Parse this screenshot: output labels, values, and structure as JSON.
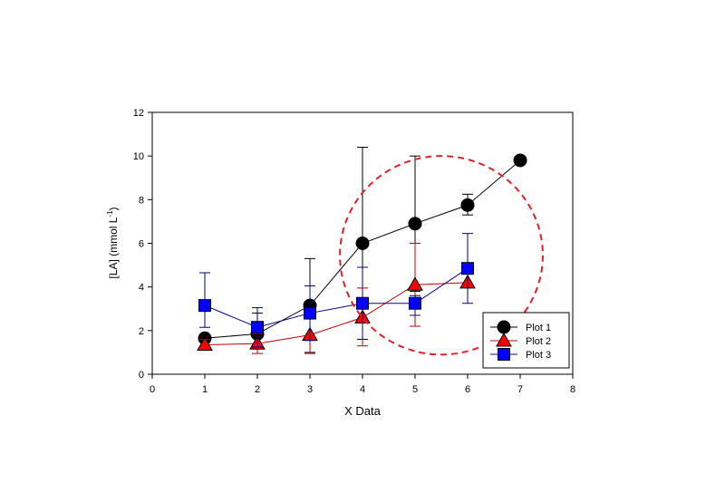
{
  "chart_data": {
    "type": "line",
    "title": "",
    "xlabel": "X Data",
    "ylabel": "[LA] (mmol L",
    "ylabel_sup": "-1",
    "ylabel_end": ")",
    "xlim": [
      0,
      8
    ],
    "ylim": [
      0,
      12
    ],
    "xticks": [
      0,
      1,
      2,
      3,
      4,
      5,
      6,
      7,
      8
    ],
    "yticks": [
      0,
      2,
      4,
      6,
      8,
      10,
      12
    ],
    "grid": false,
    "legend_position": "bottom-right",
    "series": [
      {
        "name": "Plot 1",
        "marker": "circle",
        "color": "#000000",
        "line_color": "#000000",
        "x": [
          1,
          2,
          3,
          4,
          5,
          6,
          7
        ],
        "y": [
          1.65,
          1.85,
          3.15,
          6.0,
          6.9,
          7.75,
          9.8
        ],
        "err_low": [
          0.05,
          0.1,
          2.15,
          4.4,
          3.1,
          0.45,
          0
        ],
        "err_high": [
          0.05,
          0.95,
          2.15,
          4.4,
          3.1,
          0.5,
          0
        ]
      },
      {
        "name": "Plot 2",
        "marker": "triangle",
        "color": "#ff0000",
        "line_color": "#c00000",
        "x": [
          1,
          2,
          3,
          4,
          5,
          6
        ],
        "y": [
          1.35,
          1.4,
          1.8,
          2.6,
          4.1,
          4.2
        ],
        "err_low": [
          0.25,
          0.45,
          0.85,
          1.3,
          1.9,
          0
        ],
        "err_high": [
          0.25,
          0.45,
          0.85,
          1.35,
          1.9,
          0
        ]
      },
      {
        "name": "Plot 3",
        "marker": "square",
        "color": "#0000ff",
        "line_color": "#00008b",
        "x": [
          1,
          2,
          3,
          4,
          5,
          6
        ],
        "y": [
          3.15,
          2.15,
          2.8,
          3.25,
          3.25,
          4.85
        ],
        "err_low": [
          1.0,
          0.9,
          1.25,
          1.65,
          0.55,
          1.6
        ],
        "err_high": [
          1.5,
          0.9,
          1.25,
          1.65,
          0.35,
          1.6
        ]
      }
    ],
    "annotation": {
      "shape": "dashed-ellipse",
      "color": "#e0202a",
      "cx": 5.5,
      "cy": 5.45,
      "rx": 1.93,
      "ry": 4.55
    }
  }
}
